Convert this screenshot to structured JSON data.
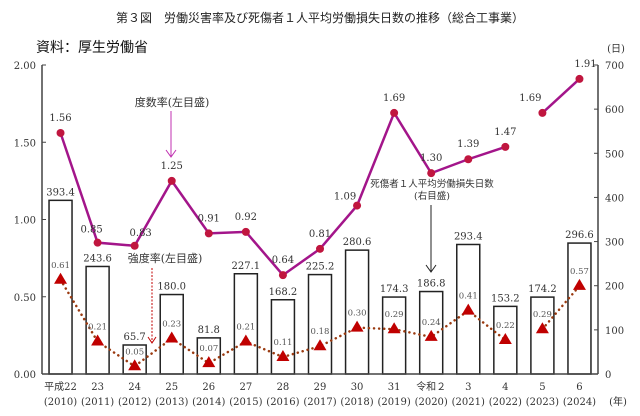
{
  "chart_data": {
    "type": "bar+line",
    "title": "第３図　労働災害率及び死傷者１人平均労働損失日数の推移（総合工事業）",
    "source": "資料：厚生労働省",
    "x_categories": [
      "平成22",
      "23",
      "24",
      "25",
      "26",
      "27",
      "28",
      "29",
      "30",
      "31",
      "令和２",
      "3",
      "4",
      "5",
      "6"
    ],
    "x_years": [
      "(2010)",
      "(2011)",
      "(2012)",
      "(2013)",
      "(2014)",
      "(2015)",
      "(2016)",
      "(2017)",
      "(2018)",
      "(2019)",
      "(2020)",
      "(2021)",
      "(2022)",
      "(2023)",
      "(2024)"
    ],
    "x_unit": "(年)",
    "left_axis": {
      "ylim": [
        0,
        2.0
      ],
      "ticks": [
        "0.00",
        "0.50",
        "1.00",
        "1.50",
        "2.00"
      ],
      "tick_values": [
        0,
        0.5,
        1.0,
        1.5,
        2.0
      ]
    },
    "right_axis": {
      "unit": "(日)",
      "ylim": [
        0,
        700
      ],
      "ticks": [
        "0",
        "100",
        "200",
        "300",
        "400",
        "500",
        "600",
        "700"
      ],
      "tick_values": [
        0,
        100,
        200,
        300,
        400,
        500,
        600,
        700
      ]
    },
    "series": [
      {
        "name": "死傷者１人平均労働損失日数",
        "axis": "right",
        "type": "bar",
        "values": [
          393.4,
          243.6,
          65.7,
          180.0,
          81.8,
          227.1,
          168.2,
          225.2,
          280.6,
          174.3,
          186.8,
          293.4,
          153.2,
          174.2,
          296.6
        ],
        "labels": [
          "393.4",
          "243.6",
          "65.7",
          "180.0",
          "81.8",
          "227.1",
          "168.2",
          "225.2",
          "280.6",
          "174.3",
          "186.8",
          "293.4",
          "153.2",
          "174.2",
          "296.6"
        ]
      },
      {
        "name": "度数率",
        "axis": "left",
        "type": "line",
        "color": "#a3158a",
        "marker_color": "#c0163f",
        "values": [
          1.56,
          0.85,
          0.83,
          1.25,
          0.91,
          0.92,
          0.64,
          0.81,
          1.09,
          1.69,
          1.3,
          1.39,
          1.47,
          1.69,
          1.91
        ],
        "labels": [
          "1.56",
          "0.85",
          "0.83",
          "1.25",
          "0.91",
          "0.92",
          "0.64",
          "0.81",
          "1.09",
          "1.69",
          "1.30",
          "1.39",
          "1.47",
          "1.69",
          "1.91"
        ],
        "break_after_index": 12
      },
      {
        "name": "強度率",
        "axis": "left",
        "type": "line-dotted",
        "color": "#9a3a10",
        "marker_color": "#c00000",
        "values": [
          0.61,
          0.21,
          0.05,
          0.23,
          0.07,
          0.21,
          0.11,
          0.18,
          0.3,
          0.29,
          0.24,
          0.41,
          0.22,
          0.29,
          0.57
        ],
        "labels": [
          "0.61",
          "0.21",
          "0.05",
          "0.23",
          "0.07",
          "0.21",
          "0.11",
          "0.18",
          "0.30",
          "0.29",
          "0.24",
          "0.41",
          "0.22",
          "0.29",
          "0.57"
        ],
        "break_after_index": 12
      }
    ],
    "annotations": {
      "frequency": "度数率(左目盛)",
      "severity": "強度率(左目盛)",
      "lost_days_line1": "死傷者１人平均労働損失日数",
      "lost_days_line2": "(右目盛)"
    }
  }
}
